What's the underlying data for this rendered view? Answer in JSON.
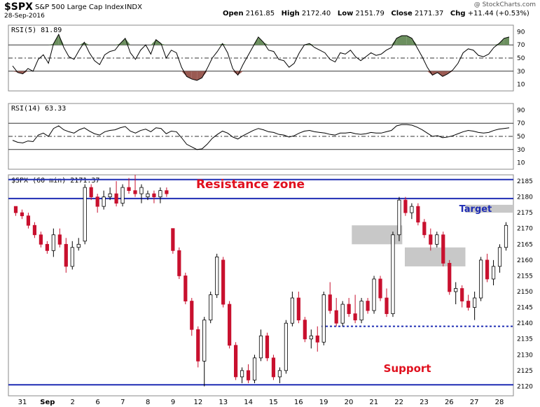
{
  "header": {
    "symbol": "$SPX",
    "name": "S&P 500 Large Cap Index",
    "exchange": "INDX",
    "date": "28-Sep-2016",
    "open_label": "Open",
    "open": "2161.85",
    "high_label": "High",
    "high": "2172.40",
    "low_label": "Low",
    "low": "2151.79",
    "close_label": "Close",
    "close": "2171.37",
    "chg_label": "Chg",
    "chg": "+11.44 (+0.53%)",
    "watermark": "@ StockCharts.com"
  },
  "colors": {
    "up": "#ffffff",
    "down": "#c8102e",
    "candle_outline": "#000000",
    "hline": "#1f2db4",
    "annotation": "#e0101e",
    "target_text": "#1f2db4",
    "zone": "#c8c8c8",
    "rsi_over": "#6b8f5e",
    "rsi_under": "#9a5a52"
  },
  "chart_data": [
    {
      "type": "line",
      "title": "RSI(5) 81.89",
      "ylim": [
        0,
        100
      ],
      "yticks": [
        10,
        30,
        50,
        70,
        90
      ],
      "levels": [
        30,
        50,
        70
      ],
      "values": [
        38,
        28,
        26,
        34,
        30,
        48,
        55,
        42,
        72,
        86,
        66,
        52,
        48,
        62,
        74,
        58,
        46,
        40,
        55,
        60,
        62,
        72,
        80,
        58,
        48,
        62,
        70,
        56,
        78,
        72,
        50,
        62,
        58,
        36,
        22,
        18,
        16,
        20,
        34,
        50,
        60,
        72,
        58,
        34,
        24,
        40,
        54,
        68,
        82,
        74,
        62,
        60,
        48,
        46,
        36,
        42,
        58,
        70,
        72,
        66,
        62,
        58,
        48,
        44,
        58,
        56,
        62,
        52,
        46,
        52,
        58,
        54,
        56,
        62,
        66,
        80,
        84,
        84,
        80,
        66,
        52,
        36,
        24,
        28,
        22,
        26,
        32,
        42,
        58,
        64,
        62,
        54,
        52,
        56,
        66,
        72,
        80,
        82
      ]
    },
    {
      "type": "line",
      "title": "RSI(14) 63.33",
      "ylim": [
        0,
        100
      ],
      "yticks": [
        10,
        30,
        50,
        70,
        90
      ],
      "levels": [
        30,
        50,
        70
      ],
      "values": [
        44,
        41,
        40,
        43,
        42,
        52,
        55,
        50,
        62,
        66,
        60,
        57,
        55,
        60,
        63,
        58,
        54,
        52,
        57,
        59,
        60,
        63,
        65,
        58,
        55,
        59,
        61,
        57,
        63,
        62,
        54,
        58,
        57,
        48,
        38,
        34,
        30,
        31,
        38,
        47,
        53,
        58,
        55,
        49,
        46,
        51,
        55,
        59,
        62,
        60,
        57,
        56,
        53,
        52,
        49,
        51,
        55,
        58,
        59,
        57,
        56,
        55,
        53,
        52,
        55,
        55,
        56,
        54,
        53,
        54,
        56,
        55,
        55,
        57,
        59,
        66,
        68,
        68,
        67,
        64,
        60,
        55,
        50,
        51,
        48,
        49,
        51,
        54,
        57,
        59,
        58,
        56,
        55,
        56,
        59,
        61,
        62,
        63
      ]
    },
    {
      "type": "candlestick",
      "title": "$SPX (60 min) 2171.37",
      "ylim": [
        2117,
        2187
      ],
      "yticks": [
        2120,
        2125,
        2130,
        2135,
        2140,
        2145,
        2150,
        2155,
        2160,
        2165,
        2170,
        2175,
        2180,
        2185
      ],
      "x_labels": [
        "31",
        "Sep",
        "2",
        "6",
        "7",
        "8",
        "9",
        "12",
        "13",
        "14",
        "15",
        "16",
        "19",
        "20",
        "21",
        "22",
        "23",
        "26",
        "27",
        "28"
      ],
      "ohlc": [
        [
          2177,
          2177,
          2174,
          2175
        ],
        [
          2175,
          2176,
          2173,
          2174
        ],
        [
          2174,
          2175,
          2170,
          2171
        ],
        [
          2171,
          2172,
          2167,
          2168
        ],
        [
          2168,
          2169,
          2164,
          2165
        ],
        [
          2165,
          2166,
          2162,
          2163
        ],
        [
          2163,
          2170,
          2161,
          2168
        ],
        [
          2168,
          2170,
          2164,
          2165
        ],
        [
          2165,
          2167,
          2156,
          2158
        ],
        [
          2158,
          2166,
          2157,
          2164
        ],
        [
          2164,
          2167,
          2163,
          2165
        ],
        [
          2166,
          2184,
          2165,
          2183
        ],
        [
          2183,
          2184,
          2179,
          2180
        ],
        [
          2180,
          2181,
          2175,
          2177
        ],
        [
          2177,
          2182,
          2176,
          2180
        ],
        [
          2180,
          2183,
          2179,
          2181
        ],
        [
          2181,
          2185,
          2177,
          2178
        ],
        [
          2178,
          2184,
          2177,
          2183
        ],
        [
          2183,
          2186,
          2181,
          2182
        ],
        [
          2182,
          2187,
          2180,
          2181
        ],
        [
          2181,
          2184,
          2178,
          2183
        ],
        [
          2180,
          2182,
          2179,
          2181
        ],
        [
          2181,
          2182,
          2178,
          2180
        ],
        [
          2180,
          2183,
          2178,
          2182
        ],
        [
          2182,
          2183,
          2180,
          2181
        ],
        [
          2170,
          2170,
          2162,
          2163
        ],
        [
          2163,
          2164,
          2154,
          2155
        ],
        [
          2155,
          2156,
          2146,
          2147
        ],
        [
          2147,
          2148,
          2136,
          2138
        ],
        [
          2138,
          2139,
          2126,
          2128
        ],
        [
          2128,
          2142,
          2120,
          2141
        ],
        [
          2141,
          2150,
          2140,
          2149
        ],
        [
          2149,
          2162,
          2148,
          2161
        ],
        [
          2160,
          2161,
          2145,
          2146
        ],
        [
          2146,
          2147,
          2132,
          2133
        ],
        [
          2133,
          2134,
          2122,
          2123
        ],
        [
          2123,
          2126,
          2121,
          2125
        ],
        [
          2125,
          2127,
          2121,
          2122
        ],
        [
          2122,
          2130,
          2121,
          2129
        ],
        [
          2129,
          2138,
          2128,
          2136
        ],
        [
          2136,
          2137,
          2128,
          2129
        ],
        [
          2129,
          2130,
          2122,
          2123
        ],
        [
          2123,
          2126,
          2121,
          2125
        ],
        [
          2125,
          2141,
          2124,
          2140
        ],
        [
          2140,
          2150,
          2139,
          2148
        ],
        [
          2148,
          2150,
          2140,
          2141
        ],
        [
          2141,
          2142,
          2134,
          2135
        ],
        [
          2135,
          2138,
          2132,
          2136
        ],
        [
          2136,
          2139,
          2131,
          2134
        ],
        [
          2134,
          2150,
          2133,
          2149
        ],
        [
          2149,
          2153,
          2143,
          2144
        ],
        [
          2144,
          2148,
          2139,
          2140
        ],
        [
          2140,
          2147,
          2139,
          2146
        ],
        [
          2146,
          2148,
          2142,
          2143
        ],
        [
          2143,
          2149,
          2140,
          2141
        ],
        [
          2141,
          2148,
          2140,
          2147
        ],
        [
          2147,
          2148,
          2143,
          2144
        ],
        [
          2144,
          2155,
          2143,
          2154
        ],
        [
          2154,
          2155,
          2147,
          2148
        ],
        [
          2148,
          2151,
          2142,
          2143
        ],
        [
          2143,
          2169,
          2142,
          2168
        ],
        [
          2168,
          2180,
          2166,
          2179
        ],
        [
          2179,
          2180,
          2174,
          2175
        ],
        [
          2175,
          2178,
          2173,
          2177
        ],
        [
          2177,
          2178,
          2171,
          2172
        ],
        [
          2172,
          2173,
          2167,
          2168
        ],
        [
          2168,
          2170,
          2163,
          2165
        ],
        [
          2165,
          2169,
          2164,
          2168
        ],
        [
          2168,
          2169,
          2158,
          2159
        ],
        [
          2159,
          2160,
          2149,
          2150
        ],
        [
          2150,
          2153,
          2146,
          2151
        ],
        [
          2151,
          2152,
          2145,
          2147
        ],
        [
          2147,
          2149,
          2144,
          2145
        ],
        [
          2145,
          2150,
          2141,
          2148
        ],
        [
          2148,
          2161,
          2147,
          2160
        ],
        [
          2160,
          2162,
          2153,
          2154
        ],
        [
          2154,
          2160,
          2152,
          2158
        ],
        [
          2158,
          2165,
          2156,
          2164
        ],
        [
          2164,
          2172,
          2163,
          2171
        ]
      ]
    }
  ],
  "annotations": {
    "resistance": "Resistance zone",
    "target": "Target",
    "support": "Support"
  },
  "levels": {
    "resistance_top": 2185.5,
    "resistance_bottom": 2179.5,
    "support": 2120.5,
    "dotted_support": 2139
  },
  "zones": [
    {
      "from_bar": 0.905,
      "to_bar": 1.0,
      "low": 2175,
      "high": 2177.5
    },
    {
      "from_bar": 0.68,
      "to_bar": 0.78,
      "low": 2165,
      "high": 2171
    },
    {
      "from_bar": 0.785,
      "to_bar": 0.905,
      "low": 2158,
      "high": 2164
    }
  ]
}
